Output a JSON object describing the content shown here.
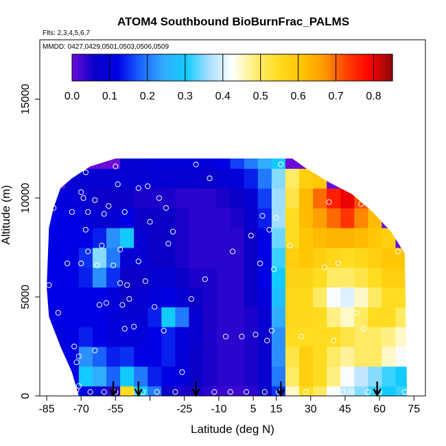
{
  "chart_data": {
    "type": "heatmap",
    "title": "ATOM4 Southbound BioBurnFrac_PALMS",
    "flights_label": "Flts: 2,3,4,5,6,7",
    "dates_label": "MMDD: 0427,0429,0501,0503,0506,0509",
    "xlabel": "Latitude (deg N)",
    "ylabel": "Altitude (m)",
    "xlim": [
      -88,
      80
    ],
    "ylim": [
      0,
      18000
    ],
    "x_ticks": [
      -85,
      -70,
      -55,
      -40,
      -25,
      -10,
      5,
      15,
      30,
      45,
      60,
      75
    ],
    "x_tick_labels": [
      "-85",
      "-70",
      "-55",
      "",
      "-25",
      "-10",
      "5",
      "15",
      "30",
      "45",
      "60",
      "75"
    ],
    "y_ticks": [
      0,
      5000,
      10000,
      15000
    ],
    "y_tick_labels": [
      "0",
      "5000",
      "10000",
      "15000"
    ],
    "colorbar": {
      "min": 0.0,
      "max": 0.85,
      "ticks": [
        0.0,
        0.1,
        0.2,
        0.3,
        0.4,
        0.5,
        0.6,
        0.7,
        0.8
      ],
      "tick_labels": [
        "0.0",
        "0.1",
        "0.2",
        "0.3",
        "0.4",
        "0.5",
        "0.6",
        "0.7",
        "0.8"
      ],
      "colors": [
        "#6a0dd8",
        "#0a00c8",
        "#0000e6",
        "#1a66ff",
        "#33aaff",
        "#11ccff",
        "#aadfff",
        "#ffffff",
        "#ffee77",
        "#ffdd22",
        "#ffc400",
        "#ff9a00",
        "#ff4000",
        "#ff0000",
        "#8b0a0a"
      ]
    },
    "field_latitudes": [
      -86,
      -80,
      -74,
      -68,
      -62,
      -56,
      -50,
      -44,
      -38,
      -32,
      -26,
      -20,
      -14,
      -8,
      -2,
      4,
      10,
      16,
      22,
      28,
      34,
      40,
      46,
      52,
      58,
      64,
      70
    ],
    "field_altitudes": [
      0,
      1000,
      2000,
      3000,
      4000,
      5000,
      6000,
      7000,
      8000,
      9000,
      10000,
      11000,
      12000
    ],
    "field_values": [
      [
        0.02,
        0.02,
        0.05,
        0.12,
        0.08,
        0.04,
        0.55,
        0.3,
        0.2,
        0.06,
        0.05,
        0.05,
        0.04,
        0.03,
        0.03,
        0.04,
        0.06,
        0.15,
        0.45,
        0.55,
        0.5,
        0.42,
        0.38,
        0.35,
        0.32,
        0.3,
        0.32
      ],
      [
        0.04,
        0.08,
        0.12,
        0.3,
        0.25,
        0.18,
        0.3,
        0.2,
        0.14,
        0.12,
        0.1,
        0.06,
        0.05,
        0.04,
        0.04,
        0.05,
        0.07,
        0.2,
        0.5,
        0.58,
        0.55,
        0.48,
        0.42,
        0.38,
        0.35,
        0.32,
        0.3
      ],
      [
        0.06,
        0.1,
        0.12,
        0.22,
        0.18,
        0.14,
        0.15,
        0.12,
        0.12,
        0.14,
        0.1,
        0.06,
        0.05,
        0.04,
        0.04,
        0.05,
        0.07,
        0.22,
        0.52,
        0.58,
        0.55,
        0.5,
        0.47,
        0.5,
        0.5,
        0.45,
        0.42
      ],
      [
        0.08,
        0.1,
        0.12,
        0.14,
        0.12,
        0.1,
        0.1,
        0.1,
        0.12,
        0.14,
        0.1,
        0.07,
        0.05,
        0.04,
        0.04,
        0.05,
        0.07,
        0.22,
        0.55,
        0.55,
        0.55,
        0.55,
        0.52,
        0.5,
        0.5,
        0.48,
        0.45
      ],
      [
        0.1,
        0.12,
        0.12,
        0.12,
        0.12,
        0.1,
        0.08,
        0.08,
        0.14,
        0.3,
        0.2,
        0.08,
        0.05,
        0.04,
        0.04,
        0.05,
        0.08,
        0.25,
        0.56,
        0.56,
        0.55,
        0.48,
        0.45,
        0.5,
        0.55,
        0.55,
        0.5
      ],
      [
        0.12,
        0.12,
        0.12,
        0.12,
        0.12,
        0.1,
        0.06,
        0.08,
        0.1,
        0.12,
        0.08,
        0.06,
        0.05,
        0.04,
        0.04,
        0.06,
        0.1,
        0.28,
        0.56,
        0.56,
        0.5,
        0.42,
        0.4,
        0.45,
        0.5,
        0.55,
        0.55
      ],
      [
        0.12,
        0.12,
        0.12,
        0.14,
        0.22,
        0.15,
        0.06,
        0.06,
        0.08,
        0.08,
        0.06,
        0.05,
        0.05,
        0.04,
        0.04,
        0.06,
        0.12,
        0.3,
        0.57,
        0.57,
        0.55,
        0.5,
        0.5,
        0.52,
        0.55,
        0.58,
        0.58
      ],
      [
        0.12,
        0.12,
        0.12,
        0.15,
        0.35,
        0.2,
        0.08,
        0.08,
        0.06,
        0.06,
        0.05,
        0.04,
        0.04,
        0.04,
        0.04,
        0.06,
        0.12,
        0.32,
        0.58,
        0.6,
        0.58,
        0.56,
        0.55,
        0.56,
        0.58,
        0.6,
        0.6
      ],
      [
        0.12,
        0.12,
        0.12,
        0.12,
        0.14,
        0.22,
        0.3,
        0.08,
        0.06,
        0.06,
        0.05,
        0.04,
        0.04,
        0.04,
        0.04,
        0.06,
        0.12,
        0.34,
        0.55,
        0.6,
        0.62,
        0.63,
        0.63,
        0.62,
        0.6,
        0.58,
        0.0
      ],
      [
        0.12,
        0.12,
        0.12,
        0.1,
        0.08,
        0.08,
        0.12,
        0.06,
        0.06,
        0.06,
        0.05,
        0.04,
        0.04,
        0.04,
        0.05,
        0.07,
        0.14,
        0.36,
        0.55,
        0.62,
        0.66,
        0.7,
        0.74,
        0.68,
        0.62,
        0.0,
        0.0
      ],
      [
        0.0,
        0.1,
        0.1,
        0.08,
        0.06,
        0.06,
        0.06,
        0.05,
        0.05,
        0.05,
        0.04,
        0.04,
        0.04,
        0.05,
        0.06,
        0.08,
        0.16,
        0.36,
        0.52,
        0.62,
        0.7,
        0.76,
        0.8,
        0.72,
        0.0,
        0.0,
        0.0
      ],
      [
        0.0,
        0.0,
        0.08,
        0.08,
        0.08,
        0.08,
        0.08,
        0.08,
        0.08,
        0.08,
        0.08,
        0.08,
        0.07,
        0.08,
        0.1,
        0.14,
        0.2,
        0.35,
        0.5,
        0.58,
        0.6,
        0.0,
        0.0,
        0.0,
        0.0,
        0.0,
        0.0
      ],
      [
        0.0,
        0.0,
        0.0,
        0.0,
        0.0,
        0.0,
        0.08,
        0.08,
        0.1,
        0.1,
        0.1,
        0.1,
        0.1,
        0.12,
        0.16,
        0.2,
        0.25,
        0.3,
        0.0,
        0.0,
        0.0,
        0.0,
        0.0,
        0.0,
        0.0,
        0.0,
        0.0
      ]
    ],
    "field_outline": [
      [
        -85,
        5500
      ],
      [
        -84,
        8500
      ],
      [
        -82,
        9500
      ],
      [
        -79,
        10500
      ],
      [
        -74,
        11000
      ],
      [
        -66,
        11600
      ],
      [
        -55,
        12000
      ],
      [
        22,
        12000
      ],
      [
        28,
        11500
      ],
      [
        38,
        10800
      ],
      [
        48,
        10200
      ],
      [
        57,
        9300
      ],
      [
        65,
        8300
      ],
      [
        71,
        7200
      ],
      [
        72,
        0
      ],
      [
        -71,
        0
      ],
      [
        -74,
        1200
      ],
      [
        -79,
        2500
      ],
      [
        -82,
        3400
      ],
      [
        -84,
        4000
      ]
    ],
    "sample_points": [
      [
        -84,
        5600
      ],
      [
        -82,
        9500
      ],
      [
        -80,
        4200
      ],
      [
        -76,
        6700
      ],
      [
        -74,
        9300
      ],
      [
        -73,
        2500
      ],
      [
        -72,
        1700
      ],
      [
        -72,
        300
      ],
      [
        -71,
        2000
      ],
      [
        -71,
        500
      ],
      [
        -70,
        6700
      ],
      [
        -70,
        10300
      ],
      [
        -69,
        10000
      ],
      [
        -68,
        11300
      ],
      [
        -68,
        8400
      ],
      [
        -67,
        9300
      ],
      [
        -67,
        7300
      ],
      [
        -66,
        200
      ],
      [
        -64,
        9900
      ],
      [
        -64,
        2300
      ],
      [
        -63,
        6600
      ],
      [
        -62,
        4600
      ],
      [
        -61,
        7600
      ],
      [
        -60,
        9200
      ],
      [
        -60,
        200
      ],
      [
        -59,
        4700
      ],
      [
        -58,
        9600
      ],
      [
        -56,
        6600
      ],
      [
        -55,
        11600
      ],
      [
        -55,
        200
      ],
      [
        -54,
        10700
      ],
      [
        -53,
        5700
      ],
      [
        -53,
        7400
      ],
      [
        -52,
        4600
      ],
      [
        -51,
        3400
      ],
      [
        -51,
        9300
      ],
      [
        -50,
        5600
      ],
      [
        -49,
        4900
      ],
      [
        -47,
        3500
      ],
      [
        -46,
        200
      ],
      [
        -45,
        6800
      ],
      [
        -45,
        10500
      ],
      [
        -43,
        200
      ],
      [
        -42,
        5800
      ],
      [
        -41,
        10600
      ],
      [
        -40,
        8800
      ],
      [
        -38,
        4500
      ],
      [
        -37,
        200
      ],
      [
        -36,
        10000
      ],
      [
        -34,
        3300
      ],
      [
        -33,
        9500
      ],
      [
        -32,
        7700
      ],
      [
        -30,
        8300
      ],
      [
        -29,
        200
      ],
      [
        -26,
        1200
      ],
      [
        -22,
        4900
      ],
      [
        -20,
        11700
      ],
      [
        -16,
        5900
      ],
      [
        -14,
        11000
      ],
      [
        -12,
        200
      ],
      [
        -7,
        3000
      ],
      [
        -5,
        200
      ],
      [
        -4,
        7300
      ],
      [
        0,
        3000
      ],
      [
        2,
        200
      ],
      [
        4,
        8100
      ],
      [
        6,
        3100
      ],
      [
        8,
        6700
      ],
      [
        9,
        9100
      ],
      [
        10,
        200
      ],
      [
        11,
        2800
      ],
      [
        12,
        8400
      ],
      [
        13,
        3300
      ],
      [
        14,
        6400
      ],
      [
        15,
        9000
      ],
      [
        16,
        200
      ],
      [
        17,
        11700
      ],
      [
        21,
        7600
      ],
      [
        26,
        3000
      ],
      [
        28,
        200
      ],
      [
        36,
        6500
      ],
      [
        38,
        9800
      ],
      [
        40,
        2800
      ],
      [
        42,
        6700
      ],
      [
        44,
        200
      ],
      [
        48,
        200
      ],
      [
        50,
        4200
      ],
      [
        52,
        9700
      ],
      [
        53,
        3400
      ],
      [
        55,
        200
      ],
      [
        60,
        200
      ],
      [
        68,
        7300
      ],
      [
        71,
        200
      ]
    ],
    "flight_arrows_lat": [
      -56,
      -45,
      -20,
      17,
      59
    ]
  }
}
